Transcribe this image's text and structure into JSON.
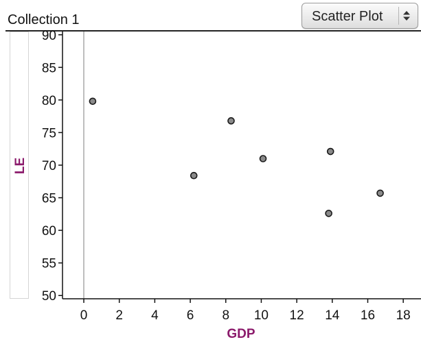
{
  "collection": {
    "title": "Collection 1"
  },
  "plot_type_select": {
    "selected": "Scatter Plot",
    "icon": "up-down-stepper-icon"
  },
  "chart_data": {
    "type": "scatter",
    "xlabel": "GDP",
    "ylabel": "LE",
    "xlim": [
      -1.2,
      19.0
    ],
    "ylim": [
      49.5,
      90.5
    ],
    "x_ticks": [
      0,
      2,
      4,
      6,
      8,
      10,
      12,
      14,
      16,
      18
    ],
    "y_ticks": [
      50,
      55,
      60,
      65,
      70,
      75,
      80,
      85,
      90
    ],
    "points": [
      {
        "x": 0.5,
        "y": 79.8
      },
      {
        "x": 6.2,
        "y": 68.4
      },
      {
        "x": 8.3,
        "y": 76.8
      },
      {
        "x": 10.1,
        "y": 71.0
      },
      {
        "x": 13.9,
        "y": 72.1
      },
      {
        "x": 13.8,
        "y": 62.6
      },
      {
        "x": 16.7,
        "y": 65.7
      }
    ],
    "grid": false,
    "colors": {
      "point_fill": "#8a8a8a",
      "point_stroke": "#1a1a1a",
      "axis_title": "#8b1a6b",
      "zero_line": "#a8a8a8"
    }
  }
}
